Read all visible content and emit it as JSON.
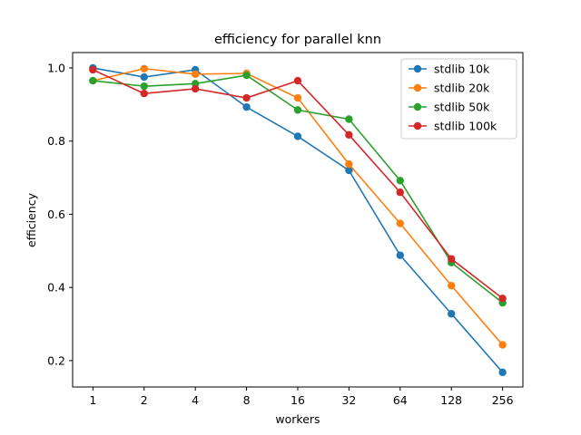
{
  "chart_data": {
    "type": "line",
    "title": "efficiency for parallel knn",
    "xlabel": "workers",
    "ylabel": "efficiency",
    "x_scale": "log2",
    "categories": [
      "1",
      "2",
      "4",
      "8",
      "16",
      "32",
      "64",
      "128",
      "256"
    ],
    "x": [
      1,
      2,
      4,
      8,
      16,
      32,
      64,
      128,
      256
    ],
    "xlim": [
      0.76,
      337
    ],
    "ylim": [
      0.128,
      1.042
    ],
    "yticks": [
      0.2,
      0.4,
      0.6,
      0.8,
      1.0
    ],
    "ytick_labels": [
      "0.2",
      "0.4",
      "0.6",
      "0.8",
      "1.0"
    ],
    "grid": false,
    "legend_position": "top-right",
    "series": [
      {
        "name": "stdlib 10k",
        "color": "#1f77b4",
        "values": [
          1.0,
          0.975,
          0.995,
          0.893,
          0.813,
          0.72,
          0.488,
          0.328,
          0.168
        ]
      },
      {
        "name": "stdlib 20k",
        "color": "#ff7f0e",
        "values": [
          0.965,
          0.998,
          0.983,
          0.985,
          0.918,
          0.737,
          0.575,
          0.405,
          0.243
        ]
      },
      {
        "name": "stdlib 50k",
        "color": "#2ca02c",
        "values": [
          0.965,
          0.95,
          0.957,
          0.98,
          0.885,
          0.86,
          0.692,
          0.468,
          0.358
        ]
      },
      {
        "name": "stdlib 100k",
        "color": "#d62728",
        "values": [
          0.995,
          0.93,
          0.943,
          0.918,
          0.965,
          0.817,
          0.66,
          0.478,
          0.37
        ]
      }
    ]
  }
}
